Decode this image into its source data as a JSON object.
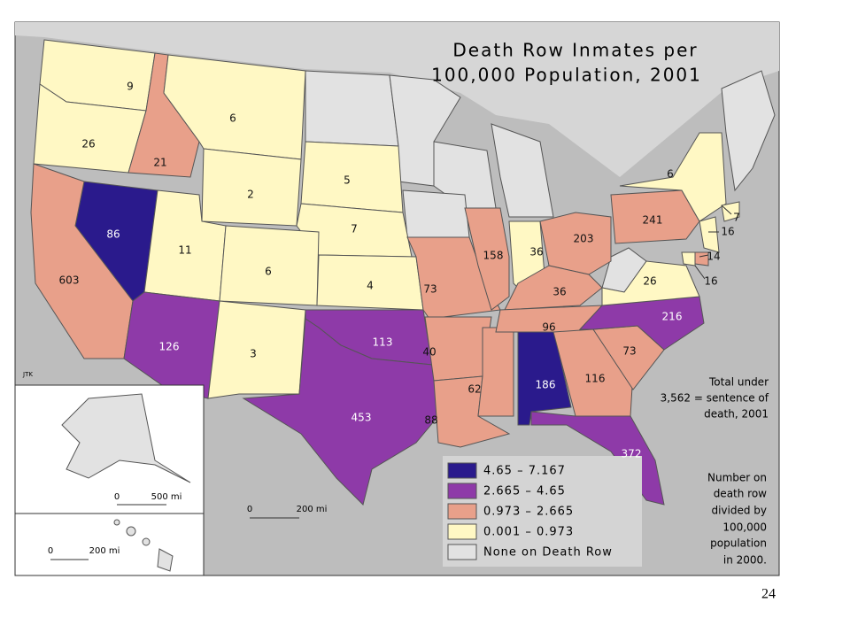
{
  "title": [
    "Death Row Inmates per",
    "100,000 Population, 2001"
  ],
  "legend": [
    {
      "label": "4.65 – 7.167",
      "color": "#2a1a8c"
    },
    {
      "label": "2.665 – 4.65",
      "color": "#8e3aa8"
    },
    {
      "label": "0.973 – 2.665",
      "color": "#e8a08a"
    },
    {
      "label": "0.001 – 0.973",
      "color": "#fff8c4"
    },
    {
      "label": "None on Death Row",
      "color": "#e2e2e2"
    }
  ],
  "states": [
    {
      "label": 9,
      "color": "#fff8c4"
    },
    {
      "label": 26,
      "color": "#fff8c4"
    },
    {
      "label": 21,
      "color": "#e8a08a"
    },
    {
      "label": 6,
      "color": "#fff8c4"
    },
    {
      "label": 2,
      "color": "#fff8c4"
    },
    {
      "label": 5,
      "color": "#fff8c4"
    },
    {
      "label": 7,
      "color": "#fff8c4"
    },
    {
      "label": 86,
      "color": "#2a1a8c"
    },
    {
      "label": 603,
      "color": "#e8a08a"
    },
    {
      "label": 11,
      "color": "#fff8c4"
    },
    {
      "label": 6,
      "color": "#fff8c4"
    },
    {
      "label": 4,
      "color": "#fff8c4"
    },
    {
      "label": 126,
      "color": "#8e3aa8"
    },
    {
      "label": 3,
      "color": "#fff8c4"
    },
    {
      "label": 113,
      "color": "#8e3aa8"
    },
    {
      "label": 453,
      "color": "#8e3aa8"
    },
    {
      "label": 73,
      "color": "#e8a08a"
    },
    {
      "label": 40,
      "color": "#e8a08a"
    },
    {
      "label": 88,
      "color": "#e8a08a"
    },
    {
      "label": 62,
      "color": "#e8a08a"
    },
    {
      "label": 186,
      "color": "#2a1a8c"
    },
    {
      "label": 158,
      "color": "#e8a08a"
    },
    {
      "label": 36,
      "color": "#fff8c4"
    },
    {
      "label": 203,
      "color": "#e8a08a"
    },
    {
      "label": 36,
      "color": "#e8a08a"
    },
    {
      "label": 96,
      "color": "#e8a08a"
    },
    {
      "label": 116,
      "color": "#e8a08a"
    },
    {
      "label": 73,
      "color": "#e8a08a"
    },
    {
      "label": 216,
      "color": "#8e3aa8"
    },
    {
      "label": 372,
      "color": "#8e3aa8"
    },
    {
      "label": 26,
      "color": "#fff8c4"
    },
    {
      "label": 241,
      "color": "#e8a08a"
    },
    {
      "label": 6,
      "color": "#fff8c4"
    },
    {
      "label": 16,
      "color": "#fff8c4"
    },
    {
      "label": 7,
      "color": "#fff8c4"
    },
    {
      "label": 14,
      "color": "#e8a08a"
    },
    {
      "label": 16,
      "color": "#fff8c4"
    }
  ],
  "total_note": [
    "Total under",
    "3,562 = sentence of",
    "death, 2001"
  ],
  "method_note": [
    "Number on",
    "death row",
    "divided by",
    "100,000",
    "population",
    "in 2000."
  ],
  "scales": {
    "alaska": [
      "0",
      "500 mi"
    ],
    "hawaii": [
      "0",
      "200 mi"
    ],
    "main": [
      "0",
      "200 mi"
    ]
  },
  "credit": "JTK",
  "page_number": "24"
}
